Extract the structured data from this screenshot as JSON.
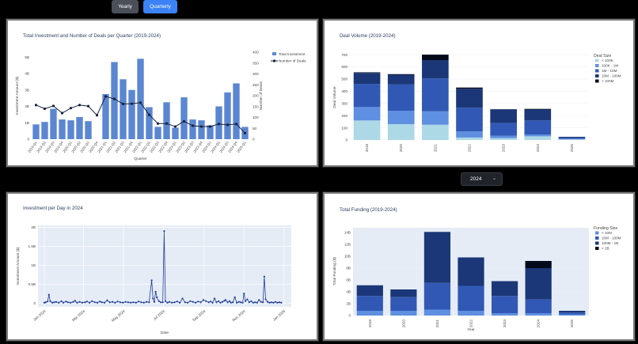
{
  "toggle": {
    "yearly": "Yearly",
    "quarterly": "Quarterly"
  },
  "year_select": {
    "value": "2024"
  },
  "chart_data": [
    {
      "type": "bar+line",
      "title": "Total Investment and Number of Deals per Quarter (2019-2024)",
      "xlabel": "Quarter",
      "ylabel": "Investment Amount ($)",
      "y2label": "Number of Deals",
      "ylim": [
        0,
        5.3
      ],
      "y2lim": [
        0,
        400
      ],
      "yticks": [
        "0",
        "1B",
        "2B",
        "3B",
        "4B",
        "5B"
      ],
      "y2ticks": [
        "0",
        "50",
        "100",
        "150",
        "200",
        "250",
        "300",
        "350",
        "400"
      ],
      "categories": [
        "2019 Q1",
        "2019 Q2",
        "2019 Q3",
        "2019 Q4",
        "2020 Q1",
        "2020 Q2",
        "2020 Q3",
        "2020 Q4",
        "2021 Q1",
        "2021 Q2",
        "2021 Q3",
        "2021 Q4",
        "2022 Q1",
        "2022 Q2",
        "2022 Q3",
        "2022 Q4",
        "2023 Q1",
        "2023 Q2",
        "2023 Q3",
        "2023 Q4",
        "2024 Q1",
        "2024 Q2",
        "2024 Q3",
        "2024 Q4",
        "2025 Q1"
      ],
      "series": [
        {
          "name": "Total Investment",
          "type": "bar",
          "color": "#5b86d1",
          "values": [
            0.9,
            1.05,
            1.85,
            1.2,
            1.15,
            1.35,
            1.1,
            0.0,
            2.75,
            4.7,
            3.65,
            3.0,
            4.9,
            1.95,
            0.75,
            2.25,
            0.7,
            2.55,
            1.2,
            1.15,
            0.85,
            2.0,
            2.85,
            3.4,
            0.75
          ]
        },
        {
          "name": "Number of Deals",
          "type": "line",
          "color": "#14213d",
          "values": [
            157,
            140,
            153,
            120,
            143,
            157,
            152,
            110,
            197,
            185,
            162,
            163,
            168,
            112,
            72,
            72,
            58,
            82,
            62,
            58,
            58,
            70,
            66,
            70,
            28
          ]
        }
      ],
      "legend": "top-right"
    },
    {
      "type": "stacked-bar",
      "title": "Deal Volume (2019-2024)",
      "ylabel": "Deal Volume",
      "ylim": [
        0,
        720
      ],
      "yticks": [
        "0",
        "100",
        "200",
        "300",
        "400",
        "500",
        "600",
        "700"
      ],
      "categories": [
        "2019",
        "2020",
        "2021",
        "2022",
        "2023",
        "2024",
        "2025"
      ],
      "legend_title": "Deal Size",
      "legend": "right",
      "series": [
        {
          "name": "< 100K",
          "color": "#add8e6",
          "values": [
            160,
            130,
            125,
            20,
            15,
            30,
            5
          ]
        },
        {
          "name": "100K - 1M",
          "color": "#5f8fe0",
          "values": [
            110,
            110,
            110,
            50,
            20,
            15,
            4
          ]
        },
        {
          "name": "1M - 10M",
          "color": "#3158b5",
          "values": [
            190,
            215,
            270,
            195,
            105,
            115,
            10
          ]
        },
        {
          "name": "10M - 100M",
          "color": "#1b3778",
          "values": [
            90,
            80,
            150,
            155,
            110,
            90,
            7
          ]
        },
        {
          "name": "> 100M",
          "color": "#050a1a",
          "values": [
            5,
            5,
            45,
            10,
            2,
            5,
            0
          ]
        }
      ]
    },
    {
      "type": "line",
      "title": "Investment per Day in 2024",
      "xlabel": "Date",
      "ylabel": "Investment Amount ($)",
      "ylim": [
        -0.1,
        2.05
      ],
      "yticks": [
        "0",
        "0.5B",
        "1B",
        "1.5B",
        "2B"
      ],
      "xticks": [
        "Jan 2024",
        "Mar 2024",
        "May 2024",
        "Jul 2024",
        "Sep 2024",
        "Nov 2024",
        "Jan 2025"
      ],
      "color": "#1f3c99",
      "baseline": 0.02,
      "points": [
        [
          0,
          0.01
        ],
        [
          2,
          0.02
        ],
        [
          5,
          0.04
        ],
        [
          7,
          0.22
        ],
        [
          9,
          0.05
        ],
        [
          12,
          0.01
        ],
        [
          15,
          0.02
        ],
        [
          18,
          0.03
        ],
        [
          22,
          0.01
        ],
        [
          26,
          0.05
        ],
        [
          29,
          0.01
        ],
        [
          33,
          0.04
        ],
        [
          36,
          0.02
        ],
        [
          40,
          0.01
        ],
        [
          44,
          0.03
        ],
        [
          47,
          0.06
        ],
        [
          50,
          0.01
        ],
        [
          54,
          0.03
        ],
        [
          58,
          0.01
        ],
        [
          62,
          0.02
        ],
        [
          65,
          0.04
        ],
        [
          69,
          0.01
        ],
        [
          73,
          0.05
        ],
        [
          77,
          0.02
        ],
        [
          81,
          0.01
        ],
        [
          85,
          0.04
        ],
        [
          88,
          0.02
        ],
        [
          92,
          0.01
        ],
        [
          96,
          0.07
        ],
        [
          100,
          0.02
        ],
        [
          104,
          0.03
        ],
        [
          108,
          0.01
        ],
        [
          112,
          0.04
        ],
        [
          116,
          0.02
        ],
        [
          120,
          0.01
        ],
        [
          124,
          0.03
        ],
        [
          128,
          0.02
        ],
        [
          132,
          0.01
        ],
        [
          136,
          0.02
        ],
        [
          140,
          0.01
        ],
        [
          144,
          0.04
        ],
        [
          148,
          0.02
        ],
        [
          152,
          0.01
        ],
        [
          156,
          0.03
        ],
        [
          160,
          0.02
        ],
        [
          164,
          0.6
        ],
        [
          166,
          0.12
        ],
        [
          168,
          0.03
        ],
        [
          170,
          0.3
        ],
        [
          172,
          0.15
        ],
        [
          175,
          0.05
        ],
        [
          178,
          0.02
        ],
        [
          181,
          0.02
        ],
        [
          183,
          1.9
        ],
        [
          185,
          0.05
        ],
        [
          188,
          0.01
        ],
        [
          191,
          0.03
        ],
        [
          195,
          0.01
        ],
        [
          199,
          0.02
        ],
        [
          203,
          0.04
        ],
        [
          207,
          0.01
        ],
        [
          211,
          0.12
        ],
        [
          215,
          0.02
        ],
        [
          219,
          0.01
        ],
        [
          223,
          0.05
        ],
        [
          227,
          0.03
        ],
        [
          231,
          0.01
        ],
        [
          235,
          0.04
        ],
        [
          239,
          0.02
        ],
        [
          243,
          0.08
        ],
        [
          247,
          0.05
        ],
        [
          251,
          0.02
        ],
        [
          254,
          0.04
        ],
        [
          257,
          0.01
        ],
        [
          260,
          0.12
        ],
        [
          263,
          0.02
        ],
        [
          266,
          0.05
        ],
        [
          269,
          0.01
        ],
        [
          272,
          0.03
        ],
        [
          275,
          0.06
        ],
        [
          277,
          0.08
        ],
        [
          280,
          0.02
        ],
        [
          283,
          0.05
        ],
        [
          285,
          0.01
        ],
        [
          288,
          0.02
        ],
        [
          291,
          0.15
        ],
        [
          294,
          0.01
        ],
        [
          297,
          0.03
        ],
        [
          300,
          0.02
        ],
        [
          303,
          0.01
        ],
        [
          305,
          0.25
        ],
        [
          307,
          0.05
        ],
        [
          310,
          0.1
        ],
        [
          313,
          0.02
        ],
        [
          316,
          0.05
        ],
        [
          319,
          0.01
        ],
        [
          322,
          0.02
        ],
        [
          325,
          0.01
        ],
        [
          328,
          0.08
        ],
        [
          331,
          0.03
        ],
        [
          334,
          0.02
        ],
        [
          336,
          0.7
        ],
        [
          338,
          0.1
        ],
        [
          341,
          0.03
        ],
        [
          344,
          0.01
        ],
        [
          347,
          0.02
        ],
        [
          350,
          0.01
        ],
        [
          353,
          0.03
        ],
        [
          356,
          0.01
        ],
        [
          359,
          0.02
        ],
        [
          362,
          0.01
        ]
      ]
    },
    {
      "type": "stacked-bar",
      "title": "Total Funding (2019-2024)",
      "ylabel": "Total Funding ($)",
      "ylim": [
        0,
        14.8
      ],
      "yticks": [
        "0",
        "2B",
        "4B",
        "6B",
        "8B",
        "10B",
        "12B",
        "14B"
      ],
      "categories": [
        "2019",
        "2020",
        "2021",
        "2022",
        "2023",
        "2024",
        "2025"
      ],
      "legend_title": "Funding Size",
      "legend": "right",
      "series": [
        {
          "name": "< 10M",
          "color": "#5f8fe0",
          "values": [
            0.8,
            0.8,
            1.0,
            0.8,
            0.4,
            0.4,
            0.2
          ]
        },
        {
          "name": "10M - 100M",
          "color": "#3158b5",
          "values": [
            2.5,
            2.3,
            4.5,
            4.2,
            2.9,
            2.3,
            0.3
          ]
        },
        {
          "name": "100M - 1B",
          "color": "#1b3778",
          "values": [
            1.8,
            1.3,
            8.6,
            4.8,
            2.5,
            5.3,
            0.3
          ]
        },
        {
          "name": "> 1B",
          "color": "#050a1a",
          "values": [
            0,
            0,
            0,
            0,
            0,
            1.2,
            0
          ]
        }
      ]
    }
  ]
}
